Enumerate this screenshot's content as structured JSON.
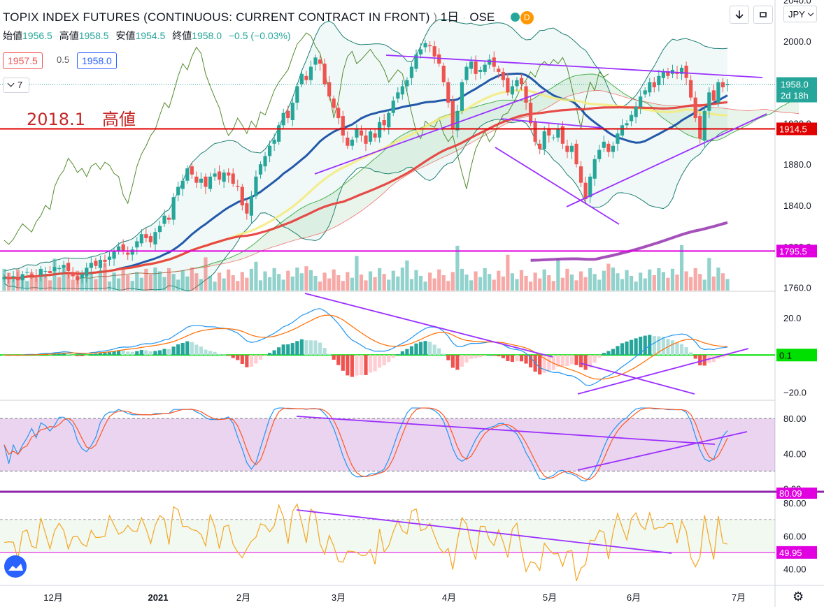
{
  "header": {
    "symbol": "TOPIX INDEX FUTURES (CONTINUOUS: CURRENT CONTRACT IN FRONT)",
    "interval": "1日",
    "exchange": "OSE",
    "replay_badge": "D",
    "currency": "JPY"
  },
  "ohlc": {
    "open_label": "始値",
    "open": "1956.5",
    "high_label": "高値",
    "high": "1958.5",
    "low_label": "安値",
    "low": "1954.5",
    "close_label": "終値",
    "close": "1958.0",
    "change": "−0.5 (−0.03%)"
  },
  "trade": {
    "sell": "1957.5",
    "spread": "0.5",
    "buy": "1958.0"
  },
  "indicators_toggle": "7",
  "annotation": "2018.1　高値",
  "price_tags": {
    "last": "1958.0",
    "countdown": "2d 18h",
    "red_line": "1914.5",
    "magenta_line": "1795.5",
    "macd": "0.1",
    "rsi_top": "80.09",
    "osc": "49.95"
  },
  "colors": {
    "up": "#26a69a",
    "down": "#ef5350",
    "ema_blue": "#0d47a1",
    "ma_yellow": "#f5eb7b",
    "ma_red": "#e53935",
    "ma_purple": "#8e24aa",
    "trend": "#9b30ff",
    "level_red": "#e00000",
    "level_magenta": "#e000e0",
    "macd_zero": "#00e000",
    "bb": "#1e7f73",
    "cloud": "#4caf50"
  },
  "chart_data": [
    {
      "type": "candlestick",
      "title": "TOPIX INDEX FUTURES (CONTINUOUS: CURRENT CONTRACT IN FRONT)",
      "x_labels": [
        "12月",
        "2021",
        "2月",
        "3月",
        "4月",
        "5月",
        "6月",
        "7月"
      ],
      "y_ticks": [
        1760,
        1800,
        1840,
        1880,
        1920,
        1960,
        2000,
        2040
      ],
      "y_tick_labels": [
        "1760.0",
        "1800.0",
        "1840.0",
        "1880.0",
        "1920.0",
        "1960.0",
        "2000.0",
        "2040.0"
      ],
      "ylim": [
        1757,
        2040
      ],
      "grid": false,
      "closes": [
        1770,
        1768,
        1771,
        1767,
        1773,
        1775,
        1772,
        1770,
        1778,
        1776,
        1774,
        1780,
        1779,
        1782,
        1776,
        1771,
        1767,
        1773,
        1779,
        1784,
        1781,
        1787,
        1785,
        1790,
        1795,
        1800,
        1796,
        1792,
        1797,
        1805,
        1812,
        1808,
        1804,
        1814,
        1820,
        1830,
        1826,
        1848,
        1858,
        1864,
        1876,
        1870,
        1862,
        1866,
        1858,
        1868,
        1871,
        1865,
        1872,
        1869,
        1861,
        1858,
        1840,
        1832,
        1849,
        1868,
        1880,
        1888,
        1898,
        1904,
        1918,
        1930,
        1925,
        1940,
        1956,
        1968,
        1962,
        1975,
        1984,
        1978,
        1958,
        1946,
        1935,
        1925,
        1908,
        1898,
        1904,
        1915,
        1908,
        1900,
        1912,
        1906,
        1921,
        1918,
        1930,
        1942,
        1950,
        1956,
        1962,
        1975,
        1987,
        1992,
        1998,
        1995,
        1985,
        1978,
        1960,
        1940,
        1915,
        1932,
        1960,
        1975,
        1980,
        1968,
        1972,
        1977,
        1982,
        1975,
        1970,
        1962,
        1950,
        1956,
        1962,
        1958,
        1940,
        1920,
        1902,
        1895,
        1912,
        1908,
        1906,
        1915,
        1900,
        1892,
        1898,
        1880,
        1862,
        1846,
        1868,
        1885,
        1894,
        1902,
        1892,
        1898,
        1910,
        1918,
        1920,
        1928,
        1936,
        1946,
        1952,
        1960,
        1955,
        1966,
        1970,
        1966,
        1972,
        1968,
        1974,
        1964,
        1945,
        1925,
        1905,
        1932,
        1950,
        1942,
        1960,
        1955,
        1958
      ],
      "moving_averages": [
        {
          "color": "#0d47a1",
          "closes_period": 25
        },
        {
          "color": "#f5eb7b",
          "closes_period": 50
        },
        {
          "color": "#e53935",
          "closes_period": 75
        }
      ],
      "levels": [
        1914.5,
        1795.5
      ]
    },
    {
      "type": "histogram",
      "name": "MACD",
      "y_ticks": [
        -20,
        0,
        20
      ],
      "y_tick_labels": [
        "−20.0",
        "",
        "20.0"
      ],
      "ylim": [
        -24,
        34
      ],
      "last_value": 0.1
    },
    {
      "type": "line",
      "name": "RSI",
      "y_ticks": [
        0,
        40,
        80
      ],
      "y_tick_labels": [
        "0.00",
        "40.00",
        "80.00"
      ],
      "ylim": [
        -2,
        100
      ],
      "band": [
        20,
        80
      ],
      "last_value": 80.09
    },
    {
      "type": "line",
      "name": "Oscillator",
      "y_ticks": [
        40,
        60,
        80
      ],
      "y_tick_labels": [
        "40.00",
        "60.00",
        "80.00"
      ],
      "ylim": [
        30,
        86
      ],
      "band": [
        50,
        70
      ],
      "last_value": 49.95
    }
  ]
}
